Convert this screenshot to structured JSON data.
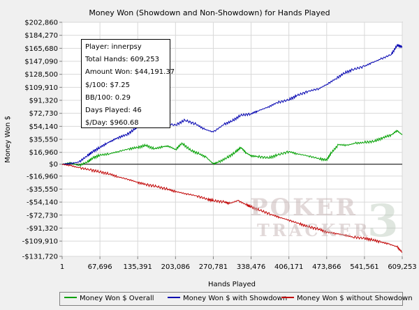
{
  "chart_data": {
    "type": "line",
    "title": "Money Won (Showdown and Non-Showdown) for Hands Played",
    "xlabel": "Hands Played",
    "ylabel": "Money Won $",
    "xlim": [
      1,
      609253
    ],
    "ylim": [
      -131720,
      202860
    ],
    "x_ticks": [
      1,
      67696,
      135391,
      203086,
      270781,
      338476,
      406171,
      473866,
      541561,
      609253
    ],
    "x_tick_labels": [
      "1",
      "67,696",
      "135,391",
      "203,086",
      "270,781",
      "338,476",
      "406,171",
      "473,866",
      "541,561",
      "609,253"
    ],
    "y_ticks": [
      202860,
      184270,
      165680,
      147090,
      128500,
      109910,
      91320,
      72730,
      54140,
      35550,
      16960,
      0,
      -16960,
      -35550,
      -54140,
      -72730,
      -91320,
      -109910,
      -131720
    ],
    "y_tick_labels": [
      "$202,860",
      "$184,270",
      "$165,680",
      "$147,090",
      "$128,500",
      "$109,910",
      "$91,320",
      "$72,730",
      "$54,140",
      "$35,550",
      "$16,960",
      "$0",
      "-$16,960",
      "-$35,550",
      "-$54,140",
      "-$72,730",
      "-$91,320",
      "-$109,910",
      "-$131,720"
    ],
    "grid": true,
    "legend_position": "bottom",
    "series": [
      {
        "name": "Money Won $ Overall",
        "color": "#00a000",
        "points": [
          [
            1,
            0
          ],
          [
            15000,
            2000
          ],
          [
            30000,
            -2000
          ],
          [
            45000,
            3000
          ],
          [
            55000,
            9000
          ],
          [
            67696,
            13000
          ],
          [
            85000,
            15000
          ],
          [
            100000,
            18000
          ],
          [
            120000,
            22000
          ],
          [
            135391,
            24000
          ],
          [
            150000,
            27000
          ],
          [
            165000,
            22000
          ],
          [
            180000,
            25000
          ],
          [
            190000,
            26000
          ],
          [
            203086,
            21000
          ],
          [
            215000,
            30000
          ],
          [
            230000,
            20000
          ],
          [
            245000,
            15000
          ],
          [
            258000,
            10000
          ],
          [
            270781,
            500
          ],
          [
            280000,
            3000
          ],
          [
            295000,
            9000
          ],
          [
            310000,
            17000
          ],
          [
            320000,
            24000
          ],
          [
            330000,
            16000
          ],
          [
            338476,
            12000
          ],
          [
            350000,
            11000
          ],
          [
            370000,
            9000
          ],
          [
            385000,
            13000
          ],
          [
            406171,
            18000
          ],
          [
            420000,
            15000
          ],
          [
            440000,
            12000
          ],
          [
            460000,
            8000
          ],
          [
            473866,
            6000
          ],
          [
            482000,
            16000
          ],
          [
            495000,
            28000
          ],
          [
            510000,
            27000
          ],
          [
            525000,
            30000
          ],
          [
            541561,
            31000
          ],
          [
            560000,
            33000
          ],
          [
            575000,
            38000
          ],
          [
            590000,
            42000
          ],
          [
            600000,
            48000
          ],
          [
            609253,
            42000
          ]
        ]
      },
      {
        "name": "Money Won $ with Showdown",
        "color": "#0000b0",
        "points": [
          [
            1,
            0
          ],
          [
            15000,
            1000
          ],
          [
            30000,
            3000
          ],
          [
            45000,
            12000
          ],
          [
            55000,
            18000
          ],
          [
            67696,
            24000
          ],
          [
            80000,
            30000
          ],
          [
            90000,
            34000
          ],
          [
            100000,
            38000
          ],
          [
            115000,
            42000
          ],
          [
            130000,
            50000
          ],
          [
            135391,
            55000
          ],
          [
            150000,
            57000
          ],
          [
            165000,
            56000
          ],
          [
            180000,
            58000
          ],
          [
            203086,
            56000
          ],
          [
            220000,
            63000
          ],
          [
            240000,
            57000
          ],
          [
            255000,
            50000
          ],
          [
            270781,
            46000
          ],
          [
            290000,
            57000
          ],
          [
            305000,
            62000
          ],
          [
            320000,
            70000
          ],
          [
            338476,
            72000
          ],
          [
            350000,
            76000
          ],
          [
            370000,
            82000
          ],
          [
            385000,
            88000
          ],
          [
            406171,
            92000
          ],
          [
            420000,
            98000
          ],
          [
            440000,
            104000
          ],
          [
            460000,
            108000
          ],
          [
            473866,
            114000
          ],
          [
            490000,
            122000
          ],
          [
            505000,
            130000
          ],
          [
            520000,
            135000
          ],
          [
            541561,
            140000
          ],
          [
            555000,
            145000
          ],
          [
            570000,
            150000
          ],
          [
            590000,
            157000
          ],
          [
            600000,
            170000
          ],
          [
            609253,
            168000
          ]
        ]
      },
      {
        "name": "Money Won $ without Showdown",
        "color": "#c00000",
        "points": [
          [
            1,
            0
          ],
          [
            15000,
            -2000
          ],
          [
            30000,
            -5000
          ],
          [
            50000,
            -8000
          ],
          [
            67696,
            -11000
          ],
          [
            85000,
            -14000
          ],
          [
            100000,
            -18000
          ],
          [
            120000,
            -22000
          ],
          [
            135391,
            -26000
          ],
          [
            150000,
            -29000
          ],
          [
            170000,
            -32000
          ],
          [
            190000,
            -36000
          ],
          [
            203086,
            -39000
          ],
          [
            220000,
            -42000
          ],
          [
            240000,
            -45000
          ],
          [
            260000,
            -50000
          ],
          [
            270781,
            -52000
          ],
          [
            290000,
            -54000
          ],
          [
            300000,
            -56000
          ],
          [
            315000,
            -52000
          ],
          [
            330000,
            -58000
          ],
          [
            338476,
            -61000
          ],
          [
            355000,
            -66000
          ],
          [
            375000,
            -72000
          ],
          [
            390000,
            -76000
          ],
          [
            406171,
            -80000
          ],
          [
            425000,
            -85000
          ],
          [
            440000,
            -89000
          ],
          [
            460000,
            -93000
          ],
          [
            473866,
            -97000
          ],
          [
            490000,
            -99000
          ],
          [
            505000,
            -101000
          ],
          [
            520000,
            -104000
          ],
          [
            541561,
            -106000
          ],
          [
            555000,
            -108000
          ],
          [
            570000,
            -111000
          ],
          [
            585000,
            -114000
          ],
          [
            600000,
            -118000
          ],
          [
            609253,
            -126000
          ]
        ]
      }
    ]
  },
  "stats": {
    "player": "Player: innerpsy",
    "total_hands": "Total Hands: 609,253",
    "amount_won": "Amount Won: $44,191.37",
    "per_100": "$/100: $7.25",
    "bb_100": "BB/100: 0.29",
    "days_played": "Days Played: 46",
    "per_day": "$/Day: $960.68"
  },
  "watermark": {
    "line1": "POKER",
    "line2": "TRACKER",
    "numeral": "3"
  }
}
